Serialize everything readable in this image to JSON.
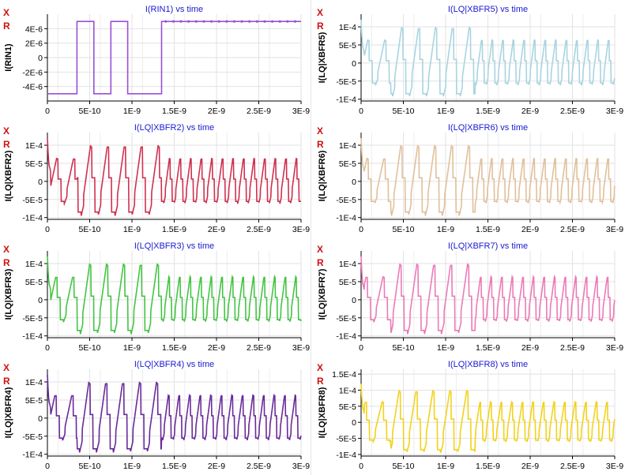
{
  "chart_data": [
    {
      "type": "line",
      "title": "I(RIN1) vs time",
      "ylabel": "I(RIN1)",
      "color": "#9a4fd6",
      "kind": "rin",
      "xlim": [
        0,
        3e-09
      ],
      "ylim": [
        -6e-06,
        6e-06
      ],
      "xticks": [
        "0",
        "5E-10",
        "1E-9",
        "1.5E-9",
        "2E-9",
        "2.5E-9",
        "3E-9"
      ],
      "yticks": [
        {
          "v": 4e-06,
          "label": "4E-6"
        },
        {
          "v": 2e-06,
          "label": "2E-6"
        },
        {
          "v": 0,
          "label": "0"
        },
        {
          "v": -2e-06,
          "label": "-2E-6"
        },
        {
          "v": -4e-06,
          "label": "-4E-6"
        }
      ],
      "x": [
        0,
        3.5e-10,
        3.5e-10,
        5.5e-10,
        5.5e-10,
        7.5e-10,
        7.5e-10,
        9.5e-10,
        9.5e-10,
        1.35e-09,
        1.35e-09,
        3e-09
      ],
      "y": [
        -5e-06,
        -5e-06,
        5e-06,
        5e-06,
        -5e-06,
        -5e-06,
        5e-06,
        5e-06,
        -5e-06,
        -5e-06,
        5e-06,
        5e-06
      ],
      "controls": {
        "x": "X",
        "r": "R"
      }
    },
    {
      "type": "line",
      "title": "I(LQ|XBFR2) vs time",
      "ylabel": "I(LQ|XBFR2)",
      "color": "#d0304e",
      "kind": "wave",
      "phase": 0.0,
      "xlim": [
        0,
        3e-09
      ],
      "ylim": [
        -0.000105,
        0.000135
      ],
      "xticks": [
        "0",
        "5E-10",
        "1E-9",
        "1.5E-9",
        "2E-9",
        "2.5E-9",
        "3E-9"
      ],
      "yticks": [
        {
          "v": 0.0001,
          "label": "1E-4"
        },
        {
          "v": 5e-05,
          "label": "5E-5"
        },
        {
          "v": 0,
          "label": "0"
        },
        {
          "v": -5e-05,
          "label": "-5E-5"
        },
        {
          "v": -0.0001,
          "label": "-1E-4"
        }
      ],
      "controls": {
        "x": "X",
        "r": "R"
      }
    },
    {
      "type": "line",
      "title": "I(LQ|XBFR3) vs time",
      "ylabel": "I(LQ|XBFR3)",
      "color": "#44c444",
      "kind": "wave",
      "phase": 0.05,
      "xlim": [
        0,
        3e-09
      ],
      "ylim": [
        -0.000105,
        0.000135
      ],
      "xticks": [
        "0",
        "5E-10",
        "1E-9",
        "1.5E-9",
        "2E-9",
        "2.5E-9",
        "3E-9"
      ],
      "yticks": [
        {
          "v": 0.0001,
          "label": "1E-4"
        },
        {
          "v": 5e-05,
          "label": "5E-5"
        },
        {
          "v": 0,
          "label": "0"
        },
        {
          "v": -5e-05,
          "label": "-5E-5"
        },
        {
          "v": -0.0001,
          "label": "-1E-4"
        }
      ],
      "controls": {
        "x": "X",
        "r": "R"
      }
    },
    {
      "type": "line",
      "title": "I(LQ|XBFR4) vs time",
      "ylabel": "I(LQ|XBFR4)",
      "color": "#6a2a9a",
      "kind": "wave",
      "phase": 0.1,
      "xlim": [
        0,
        3e-09
      ],
      "ylim": [
        -0.000105,
        0.000135
      ],
      "xticks": [
        "0",
        "5E-10",
        "1E-9",
        "1.5E-9",
        "2E-9",
        "2.5E-9",
        "3E-9"
      ],
      "yticks": [
        {
          "v": 0.0001,
          "label": "1E-4"
        },
        {
          "v": 5e-05,
          "label": "5E-5"
        },
        {
          "v": 0,
          "label": "0"
        },
        {
          "v": -5e-05,
          "label": "-5E-5"
        },
        {
          "v": -0.0001,
          "label": "-1E-4"
        }
      ],
      "controls": {
        "x": "X",
        "r": "R"
      }
    },
    {
      "type": "line",
      "title": "I(LQ|XBFR5) vs time",
      "ylabel": "I(LQ|XBFR5)",
      "color": "#a8d4e0",
      "kind": "wave",
      "phase": 0.15,
      "xlim": [
        0,
        3e-09
      ],
      "ylim": [
        -0.000105,
        0.000135
      ],
      "xticks": [
        "0",
        "5E-10",
        "1E-9",
        "1.5E-9",
        "2E-9",
        "2.5E-9",
        "3E-9"
      ],
      "yticks": [
        {
          "v": 0.0001,
          "label": "1E-4"
        },
        {
          "v": 5e-05,
          "label": "5E-5"
        },
        {
          "v": 0,
          "label": "0"
        },
        {
          "v": -5e-05,
          "label": "-5E-5"
        },
        {
          "v": -0.0001,
          "label": "-1E-4"
        }
      ],
      "controls": {
        "x": "X",
        "r": "R"
      }
    },
    {
      "type": "line",
      "title": "I(LQ|XBFR6) vs time",
      "ylabel": "I(LQ|XBFR6)",
      "color": "#e0c09a",
      "kind": "wave",
      "phase": 0.2,
      "xlim": [
        0,
        3e-09
      ],
      "ylim": [
        -0.000105,
        0.000135
      ],
      "xticks": [
        "0",
        "5E-10",
        "1E-9",
        "1.5E-9",
        "2E-9",
        "2.5E-9",
        "3E-9"
      ],
      "yticks": [
        {
          "v": 0.0001,
          "label": "1E-4"
        },
        {
          "v": 5e-05,
          "label": "5E-5"
        },
        {
          "v": 0,
          "label": "0"
        },
        {
          "v": -5e-05,
          "label": "-5E-5"
        },
        {
          "v": -0.0001,
          "label": "-1E-4"
        }
      ],
      "controls": {
        "x": "X",
        "r": "R"
      }
    },
    {
      "type": "line",
      "title": "I(LQ|XBFR7) vs time",
      "ylabel": "I(LQ|XBFR7)",
      "color": "#ec7ab8",
      "kind": "wave",
      "phase": 0.25,
      "xlim": [
        0,
        3e-09
      ],
      "ylim": [
        -0.000105,
        0.000135
      ],
      "xticks": [
        "0",
        "5E-10",
        "1E-9",
        "1.5E-9",
        "2E-9",
        "2.5E-9",
        "3E-9"
      ],
      "yticks": [
        {
          "v": 0.0001,
          "label": "1E-4"
        },
        {
          "v": 5e-05,
          "label": "5E-5"
        },
        {
          "v": 0,
          "label": "0"
        },
        {
          "v": -5e-05,
          "label": "-5E-5"
        },
        {
          "v": -0.0001,
          "label": "-1E-4"
        }
      ],
      "controls": {
        "x": "X",
        "r": "R"
      }
    },
    {
      "type": "line",
      "title": "I(LQ|XBFR8) vs time",
      "ylabel": "I(LQ|XBFR8)",
      "color": "#f2d21a",
      "kind": "wave",
      "phase": 0.3,
      "xlim": [
        0,
        3e-09
      ],
      "ylim": [
        -0.000105,
        0.000165
      ],
      "xticks": [
        "0",
        "5E-10",
        "1E-9",
        "1.5E-9",
        "2E-9",
        "2.5E-9",
        "3E-9"
      ],
      "yticks": [
        {
          "v": 0.00015,
          "label": "1.5E-4"
        },
        {
          "v": 0.0001,
          "label": "1E-4"
        },
        {
          "v": 5e-05,
          "label": "5E-5"
        },
        {
          "v": 0,
          "label": "0"
        },
        {
          "v": -5e-05,
          "label": "-5E-5"
        },
        {
          "v": -0.0001,
          "label": "-1E-4"
        }
      ],
      "controls": {
        "x": "X",
        "r": "R"
      }
    }
  ]
}
